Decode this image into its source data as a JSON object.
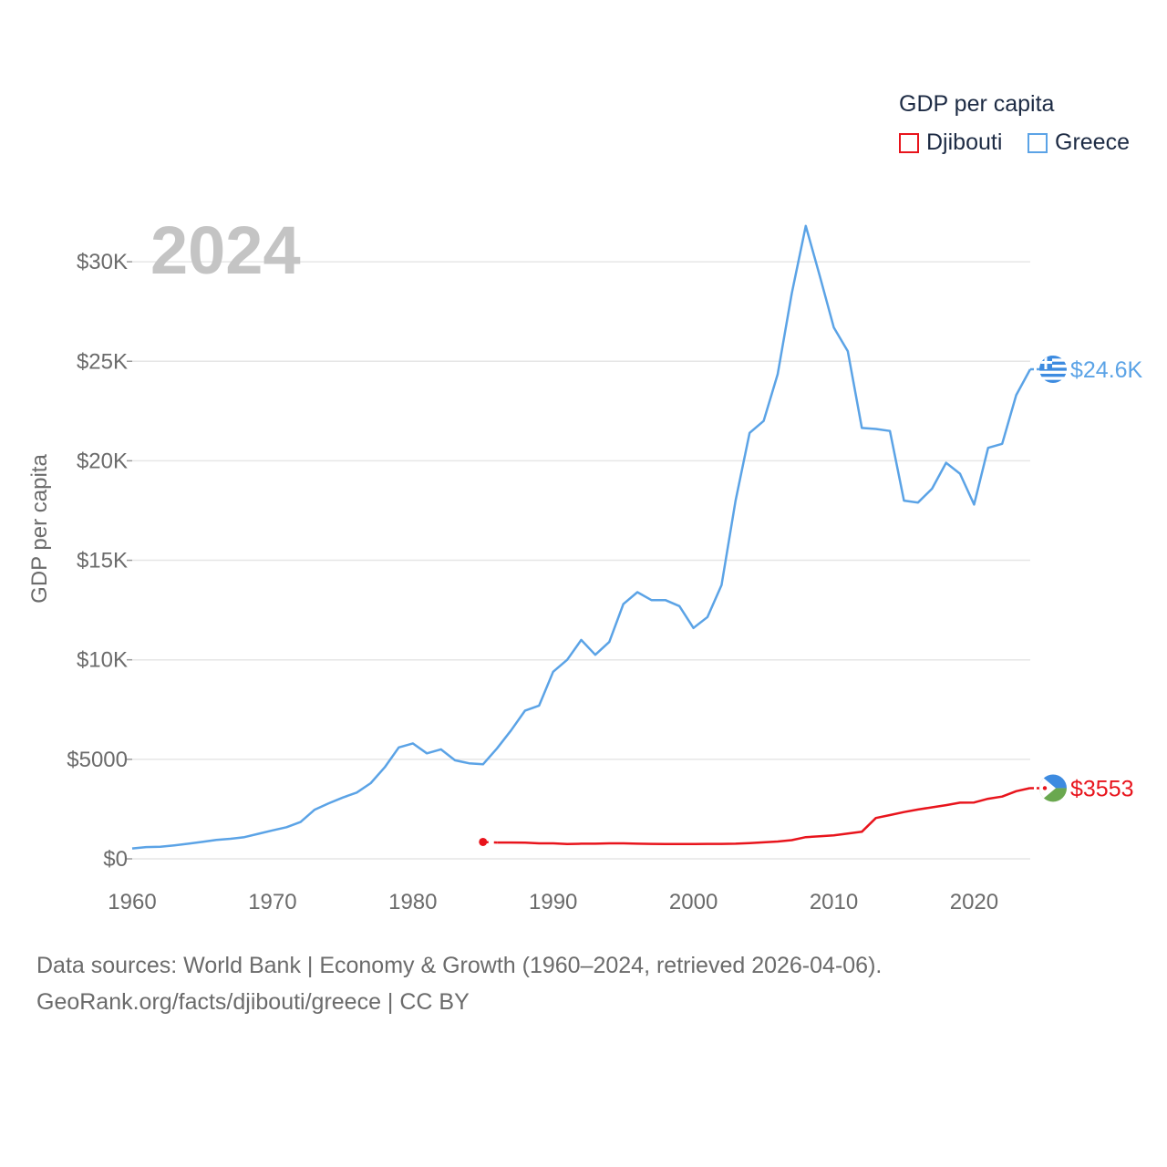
{
  "legend": {
    "title": "GDP per capita",
    "items": [
      {
        "name": "Djibouti",
        "color": "#e8141c"
      },
      {
        "name": "Greece",
        "color": "#5ba3e6"
      }
    ]
  },
  "footer": {
    "line1": "Data sources: World Bank | Economy & Growth (1960–2024, retrieved 2026-04-06).",
    "line2": "GeoRank.org/facts/djibouti/greece | CC BY"
  },
  "chart_data": {
    "type": "line",
    "year_label": "2024",
    "ylabel": "GDP per capita",
    "xlim": [
      1960,
      2024
    ],
    "ylim": [
      0,
      32500
    ],
    "x_ticks": [
      "1960",
      "1970",
      "1980",
      "1990",
      "2000",
      "2010",
      "2020"
    ],
    "y_ticks": [
      {
        "value": 0,
        "label": "$0"
      },
      {
        "value": 5000,
        "label": "$5000"
      },
      {
        "value": 10000,
        "label": "$10K"
      },
      {
        "value": 15000,
        "label": "$15K"
      },
      {
        "value": 20000,
        "label": "$20K"
      },
      {
        "value": 25000,
        "label": "$25K"
      },
      {
        "value": 30000,
        "label": "$30K"
      }
    ],
    "grid": true,
    "series": [
      {
        "name": "Greece",
        "color": "#5ba3e6",
        "end_label": "$24.6K",
        "flag_icon": "greece-flag-icon",
        "x": [
          1960,
          1961,
          1962,
          1963,
          1964,
          1965,
          1966,
          1967,
          1968,
          1969,
          1970,
          1971,
          1972,
          1973,
          1974,
          1975,
          1976,
          1977,
          1978,
          1979,
          1980,
          1981,
          1982,
          1983,
          1984,
          1985,
          1986,
          1987,
          1988,
          1989,
          1990,
          1991,
          1992,
          1993,
          1994,
          1995,
          1996,
          1997,
          1998,
          1999,
          2000,
          2001,
          2002,
          2003,
          2004,
          2005,
          2006,
          2007,
          2008,
          2009,
          2010,
          2011,
          2012,
          2013,
          2014,
          2015,
          2016,
          2017,
          2018,
          2019,
          2020,
          2021,
          2022,
          2023,
          2024
        ],
        "values": [
          520,
          590,
          610,
          680,
          760,
          850,
          950,
          1010,
          1090,
          1260,
          1430,
          1590,
          1850,
          2470,
          2790,
          3080,
          3330,
          3800,
          4600,
          5600,
          5800,
          5300,
          5500,
          4950,
          4800,
          4750,
          5550,
          6450,
          7450,
          7700,
          9400,
          10000,
          11000,
          10250,
          10900,
          12800,
          13400,
          13000,
          13000,
          12700,
          11600,
          12150,
          13750,
          18000,
          21400,
          22000,
          24350,
          28400,
          31800,
          29300,
          26700,
          25500,
          21650,
          21600,
          21500,
          18000,
          17900,
          18600,
          19900,
          19350,
          17800,
          20650,
          20850,
          23300,
          24600
        ]
      },
      {
        "name": "Djibouti",
        "color": "#e8141c",
        "end_label": "$3553",
        "flag_icon": "djibouti-flag-icon",
        "first_point_dashed": true,
        "x": [
          1985,
          1986,
          1987,
          1988,
          1989,
          1990,
          1991,
          1992,
          1993,
          1994,
          1995,
          1996,
          1997,
          1998,
          1999,
          2000,
          2001,
          2002,
          2003,
          2004,
          2005,
          2006,
          2007,
          2008,
          2009,
          2010,
          2011,
          2012,
          2013,
          2014,
          2015,
          2016,
          2017,
          2018,
          2019,
          2020,
          2021,
          2022,
          2023,
          2024
        ],
        "values": [
          850,
          820,
          820,
          810,
          780,
          780,
          740,
          760,
          760,
          780,
          780,
          760,
          750,
          740,
          740,
          740,
          750,
          750,
          760,
          790,
          830,
          870,
          940,
          1090,
          1130,
          1180,
          1270,
          1360,
          2050,
          2200,
          2350,
          2480,
          2590,
          2700,
          2820,
          2830,
          3020,
          3130,
          3400,
          3553
        ]
      }
    ]
  }
}
